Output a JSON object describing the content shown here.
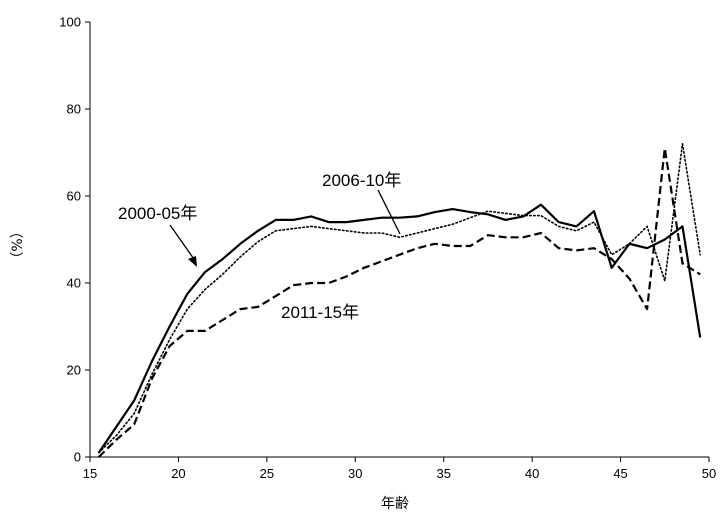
{
  "chart_data": {
    "type": "line",
    "title": "",
    "xlabel": "年齢",
    "ylabel": "（%）",
    "xlim": [
      15,
      50
    ],
    "ylim": [
      0,
      100
    ],
    "xticks": [
      15,
      20,
      25,
      30,
      35,
      40,
      45,
      50
    ],
    "yticks": [
      0,
      20,
      40,
      60,
      80,
      100
    ],
    "grid": false,
    "legend": "none (series labelled by annotations)",
    "series": [
      {
        "name": "2000-05年",
        "style": "solid",
        "color": "#000000",
        "x": [
          15.5,
          16.5,
          17.5,
          18.5,
          19.5,
          20.5,
          21.5,
          22.5,
          23.5,
          24.5,
          25.5,
          26.5,
          27.5,
          28.5,
          29.5,
          30.5,
          31.5,
          32.5,
          33.5,
          34.5,
          35.5,
          36.5,
          37.5,
          38.5,
          39.5,
          40.5,
          41.5,
          42.5,
          43.5,
          44.5,
          45.5,
          46.5,
          47.5,
          48.5,
          49.5
        ],
        "values": [
          1,
          7,
          13,
          22,
          30,
          37.5,
          42.5,
          45.5,
          49,
          52,
          54.5,
          54.5,
          55.3,
          54,
          54,
          54.5,
          55,
          55,
          55.3,
          56.3,
          57,
          56.3,
          55.8,
          54.5,
          55.3,
          58,
          54,
          53,
          56.5,
          43.5,
          49,
          48,
          50,
          53,
          27.5
        ]
      },
      {
        "name": "2006-10年",
        "style": "dotted",
        "color": "#000000",
        "x": [
          15.5,
          16.5,
          17.5,
          18.5,
          19.5,
          20.5,
          21.5,
          22.5,
          23.5,
          24.5,
          25.5,
          26.5,
          27.5,
          28.5,
          29.5,
          30.5,
          31.5,
          32.5,
          33.5,
          34.5,
          35.5,
          36.5,
          37.5,
          38.5,
          39.5,
          40.5,
          41.5,
          42.5,
          43.5,
          44.5,
          45.5,
          46.5,
          47.5,
          48.5,
          49.5
        ],
        "values": [
          1,
          5,
          10,
          19,
          27,
          34,
          38.5,
          42,
          46,
          49.5,
          52,
          52.5,
          53,
          52.5,
          52,
          51.5,
          51.5,
          50.5,
          51.5,
          52.5,
          53.5,
          55,
          56.5,
          56,
          55.5,
          55.5,
          53,
          52,
          54,
          46.5,
          49,
          53,
          40.5,
          72,
          46.5
        ]
      },
      {
        "name": "2011-15年",
        "style": "dashed",
        "color": "#000000",
        "x": [
          15.5,
          16.5,
          17.5,
          18.5,
          19.5,
          20.5,
          21.5,
          22.5,
          23.5,
          24.5,
          25.5,
          26.5,
          27.5,
          28.5,
          29.5,
          30.5,
          31.5,
          32.5,
          33.5,
          34.5,
          35.5,
          36.5,
          37.5,
          38.5,
          39.5,
          40.5,
          41.5,
          42.5,
          43.5,
          44.5,
          45.5,
          46.5,
          47.5,
          48.5,
          49.5
        ],
        "values": [
          0,
          4,
          7.5,
          18,
          25.5,
          29,
          29,
          31.5,
          34,
          34.5,
          37,
          39.5,
          40,
          40,
          41.5,
          43.5,
          45,
          46.5,
          48,
          49,
          48.5,
          48.5,
          51,
          50.5,
          50.5,
          51.5,
          48,
          47.5,
          48,
          45.5,
          41,
          34,
          71,
          44.5,
          42
        ]
      }
    ],
    "annotations": [
      {
        "text": "2000-05年",
        "series": "2000-05年"
      },
      {
        "text": "2006-10年",
        "series": "2006-10年"
      },
      {
        "text": "2011-15年",
        "series": "2011-15年"
      }
    ]
  }
}
